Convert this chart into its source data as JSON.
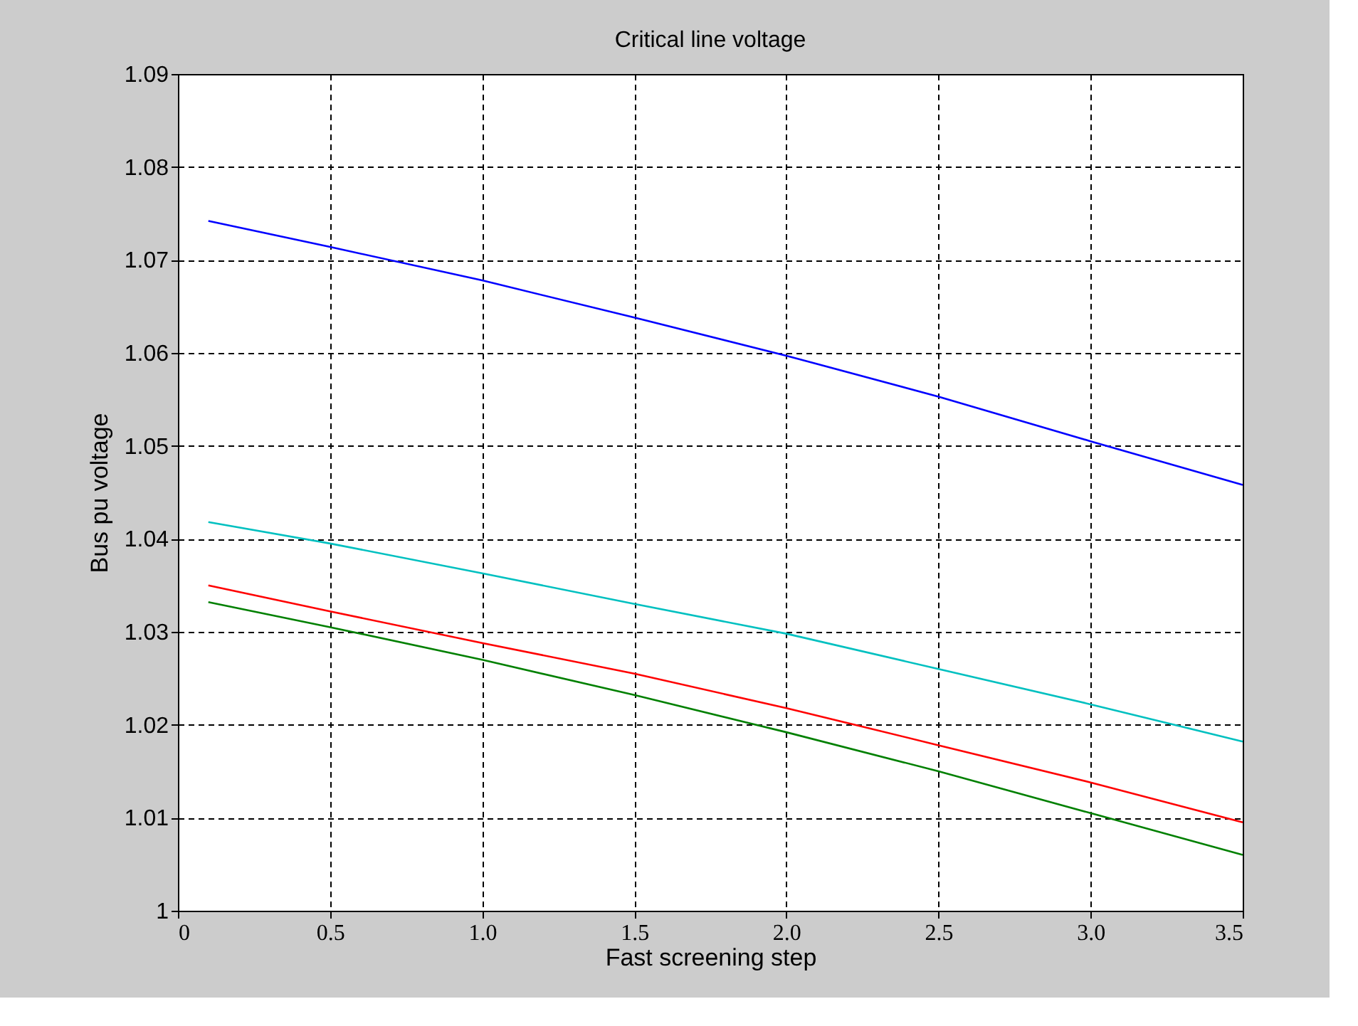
{
  "chart_data": {
    "type": "line",
    "title": "Critical line voltage",
    "xlabel": "Fast screening step",
    "ylabel": "Bus pu voltage",
    "xlim": [
      0,
      3.5
    ],
    "xticks": [
      0,
      0.5,
      {
        "value": 1,
        "label": "1.0"
      },
      1.5,
      {
        "value": 2,
        "label": "2.0"
      },
      2.5,
      {
        "value": 3,
        "label": "3.0"
      },
      3.5
    ],
    "ylim": [
      1,
      1.09
    ],
    "yticks": [
      1,
      1.01,
      1.02,
      1.03,
      1.04,
      1.05,
      1.06,
      1.07,
      1.08,
      1.09
    ],
    "grid": true,
    "marker": "none",
    "line_style": "solid",
    "series": [
      {
        "color": "#0000ff",
        "x": [
          0.1,
          0.5,
          1.0,
          1.5,
          2.0,
          2.5,
          3.0,
          3.5
        ],
        "values": [
          1.0742,
          1.0714,
          1.0678,
          1.0638,
          1.0597,
          1.0553,
          1.0505,
          1.0458
        ]
      },
      {
        "color": "#00c0c0",
        "x": [
          0.1,
          0.5,
          1.0,
          1.5,
          2.0,
          2.5,
          3.0,
          3.5
        ],
        "values": [
          1.0418,
          1.0395,
          1.0363,
          1.033,
          1.0298,
          1.026,
          1.0222,
          1.0182
        ]
      },
      {
        "color": "#ff0000",
        "x": [
          0.1,
          0.5,
          1.0,
          1.5,
          2.0,
          2.5,
          3.0,
          3.5
        ],
        "values": [
          1.035,
          1.0322,
          1.0288,
          1.0255,
          1.0218,
          1.0178,
          1.0138,
          1.0095
        ]
      },
      {
        "color": "#008000",
        "x": [
          0.1,
          0.5,
          1.0,
          1.5,
          2.0,
          2.5,
          3.0,
          3.5
        ],
        "values": [
          1.0332,
          1.0305,
          1.027,
          1.0232,
          1.0192,
          1.015,
          1.0105,
          1.006
        ]
      }
    ]
  }
}
